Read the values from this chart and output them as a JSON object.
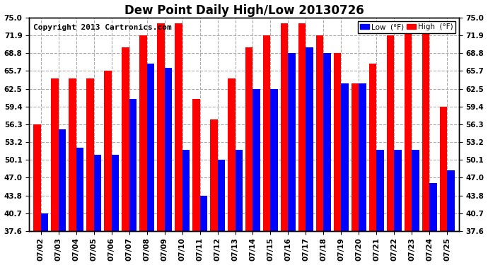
{
  "title": "Dew Point Daily High/Low 20130726",
  "copyright": "Copyright 2013 Cartronics.com",
  "dates": [
    "07/02",
    "07/03",
    "07/04",
    "07/05",
    "07/06",
    "07/07",
    "07/08",
    "07/09",
    "07/10",
    "07/11",
    "07/12",
    "07/13",
    "07/14",
    "07/15",
    "07/16",
    "07/17",
    "07/18",
    "07/19",
    "07/20",
    "07/21",
    "07/22",
    "07/23",
    "07/24",
    "07/25"
  ],
  "high": [
    56.3,
    64.4,
    64.4,
    64.4,
    65.7,
    69.8,
    71.9,
    74.0,
    74.0,
    60.8,
    57.2,
    64.4,
    69.8,
    71.9,
    74.0,
    74.0,
    71.9,
    68.8,
    63.5,
    67.0,
    71.9,
    73.0,
    74.0,
    59.4
  ],
  "low": [
    40.7,
    55.4,
    52.2,
    51.0,
    51.0,
    60.8,
    67.0,
    66.2,
    51.8,
    43.8,
    50.1,
    51.8,
    62.5,
    62.5,
    68.8,
    69.8,
    68.8,
    63.5,
    63.5,
    51.8,
    51.8,
    51.8,
    46.0,
    48.2
  ],
  "ymin": 37.6,
  "ymax": 75.0,
  "yticks": [
    37.6,
    40.7,
    43.8,
    47.0,
    50.1,
    53.2,
    56.3,
    59.4,
    62.5,
    65.7,
    68.8,
    71.9,
    75.0
  ],
  "high_color": "#ff0000",
  "low_color": "#0000ff",
  "bg_color": "#ffffff",
  "grid_color": "#aaaaaa",
  "title_fontsize": 12,
  "label_fontsize": 7.5,
  "copyright_fontsize": 8
}
